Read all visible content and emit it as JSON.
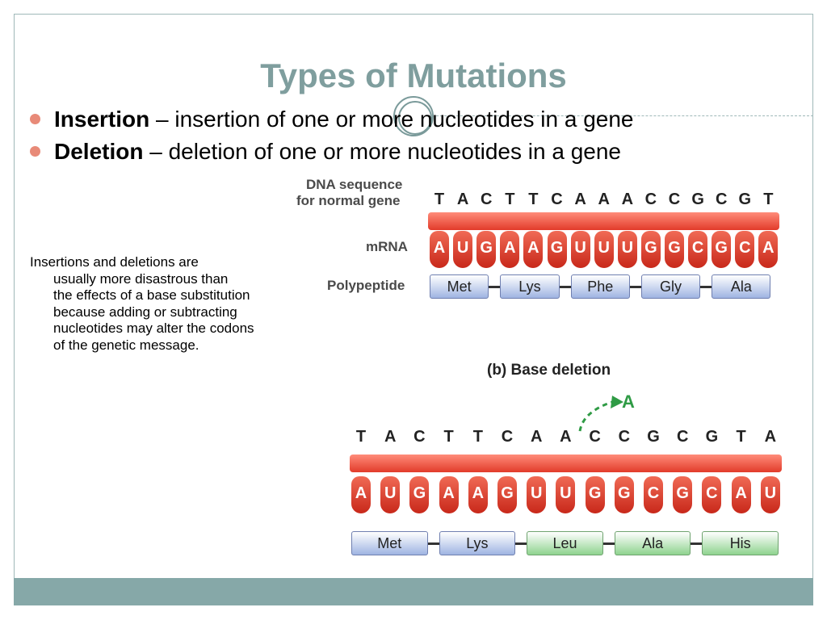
{
  "slide": {
    "title": "Types of Mutations",
    "bullets": [
      {
        "term": "Insertion",
        "text": " – insertion of one or more nucleotides in a gene"
      },
      {
        "term": "Deletion",
        "text": " – deletion of one or more nucleotides in a gene"
      }
    ],
    "note_lines": [
      "Insertions and deletions are",
      "usually more disastrous than",
      "the effects of a base substitution",
      "because adding or subtracting",
      "nucleotides may alter the codons",
      "of the genetic message."
    ]
  },
  "diagram": {
    "labels": {
      "dna_line1": "DNA sequence",
      "dna_line2": "for normal gene",
      "mrna": "mRNA",
      "polypeptide": "Polypeptide",
      "deletion_title": "(b) Base deletion",
      "deleted_base": "A"
    },
    "normal": {
      "dna": [
        "T",
        "A",
        "C",
        "T",
        "T",
        "C",
        "A",
        "A",
        "A",
        "C",
        "C",
        "G",
        "C",
        "G",
        "T"
      ],
      "mrna": [
        "A",
        "U",
        "G",
        "A",
        "A",
        "G",
        "U",
        "U",
        "U",
        "G",
        "G",
        "C",
        "G",
        "C",
        "A"
      ],
      "polypeptide": [
        "Met",
        "Lys",
        "Phe",
        "Gly",
        "Ala"
      ]
    },
    "deletion": {
      "dna": [
        "T",
        "A",
        "C",
        "T",
        "T",
        "C",
        "A",
        "A",
        "C",
        "C",
        "G",
        "C",
        "G",
        "T",
        "A"
      ],
      "mrna": [
        "A",
        "U",
        "G",
        "A",
        "A",
        "G",
        "U",
        "U",
        "G",
        "G",
        "C",
        "G",
        "C",
        "A",
        "U"
      ],
      "polypeptide": [
        "Met",
        "Lys",
        "Leu",
        "Ala",
        "His"
      ],
      "polypeptide_colors": [
        "blue",
        "blue",
        "green",
        "green",
        "green"
      ]
    },
    "colors": {
      "band": "#e23b2a",
      "arrow": "#2f9b45"
    }
  }
}
